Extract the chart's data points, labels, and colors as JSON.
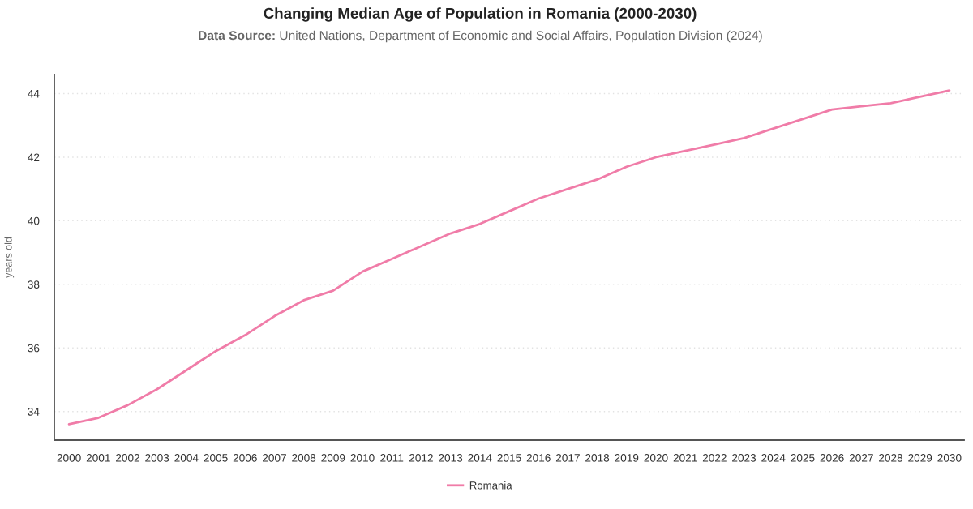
{
  "chart_data": {
    "type": "line",
    "title": "Changing Median Age of Population in Romania (2000-2030)",
    "subtitle": "Data Source: United Nations, Department of Economic and Social Affairs, Population Division (2024)",
    "ylabel": "years old",
    "categories": [
      "2000",
      "2001",
      "2002",
      "2003",
      "2004",
      "2005",
      "2006",
      "2007",
      "2008",
      "2009",
      "2010",
      "2011",
      "2012",
      "2013",
      "2014",
      "2015",
      "2016",
      "2017",
      "2018",
      "2019",
      "2020",
      "2021",
      "2022",
      "2023",
      "2024",
      "2025",
      "2026",
      "2027",
      "2028",
      "2029",
      "2030"
    ],
    "series": [
      {
        "name": "Romania",
        "color": "#f07ca8",
        "values": [
          33.6,
          33.8,
          34.2,
          34.7,
          35.3,
          35.9,
          36.4,
          37.0,
          37.5,
          37.8,
          38.4,
          38.8,
          39.2,
          39.6,
          39.9,
          40.3,
          40.7,
          41.0,
          41.3,
          41.7,
          42.0,
          42.2,
          42.4,
          42.6,
          42.9,
          43.2,
          43.5,
          43.6,
          43.7,
          43.9,
          44.1
        ]
      }
    ],
    "ylim": [
      33.1,
      44.6
    ],
    "yticks": [
      34,
      36,
      38,
      40,
      42,
      44
    ],
    "grid": "y",
    "legend": "bottom"
  }
}
